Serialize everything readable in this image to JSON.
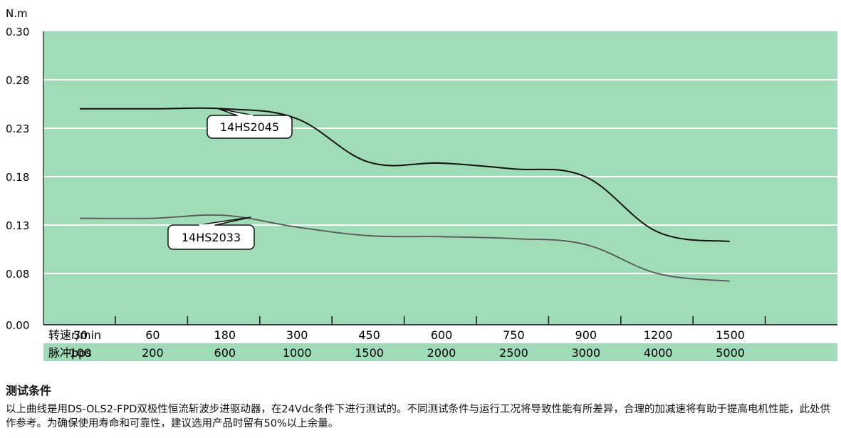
{
  "chart_data": {
    "type": "line",
    "y_unit": "N.m",
    "y_ticks": [
      "0.30",
      "0.28",
      "0.23",
      "0.18",
      "0.13",
      "0.08",
      "0.00"
    ],
    "ylim": [
      0,
      0.3
    ],
    "grid": true,
    "rows": [
      {
        "label": "转速r/min",
        "values": [
          "30",
          "60",
          "180",
          "300",
          "450",
          "600",
          "750",
          "900",
          "1200",
          "1500"
        ]
      },
      {
        "label": "脉冲pps",
        "values": [
          "100",
          "200",
          "600",
          "1000",
          "1500",
          "2000",
          "2500",
          "3000",
          "4000",
          "5000"
        ]
      }
    ],
    "x_index": [
      0,
      1,
      2,
      3,
      4,
      5,
      6,
      7,
      8,
      9
    ],
    "series": [
      {
        "name": "14HS2045",
        "values": [
          0.25,
          0.25,
          0.25,
          0.24,
          0.195,
          0.194,
          0.188,
          0.18,
          0.123,
          0.113
        ],
        "color": "#111111"
      },
      {
        "name": "14HS2033",
        "values": [
          0.137,
          0.137,
          0.14,
          0.128,
          0.119,
          0.118,
          0.116,
          0.11,
          0.08,
          0.068
        ],
        "color": "#555555"
      }
    ],
    "colors": {
      "plot_bg": "#a0dcb8",
      "grid": "#ffffff",
      "row_bg": "#a0dcb8"
    }
  },
  "notes": {
    "title": "测试条件",
    "body": "以上曲线是用DS-OLS2-FPD双极性恒流斩波步进驱动器，在24Vdc条件下进行测试的。不同测试条件与运行工况将导致性能有所差异，合理的加减速将有助于提高电机性能，此处供作参考。为确保使用寿命和可靠性，建议选用产品时留有50%以上余量。"
  }
}
